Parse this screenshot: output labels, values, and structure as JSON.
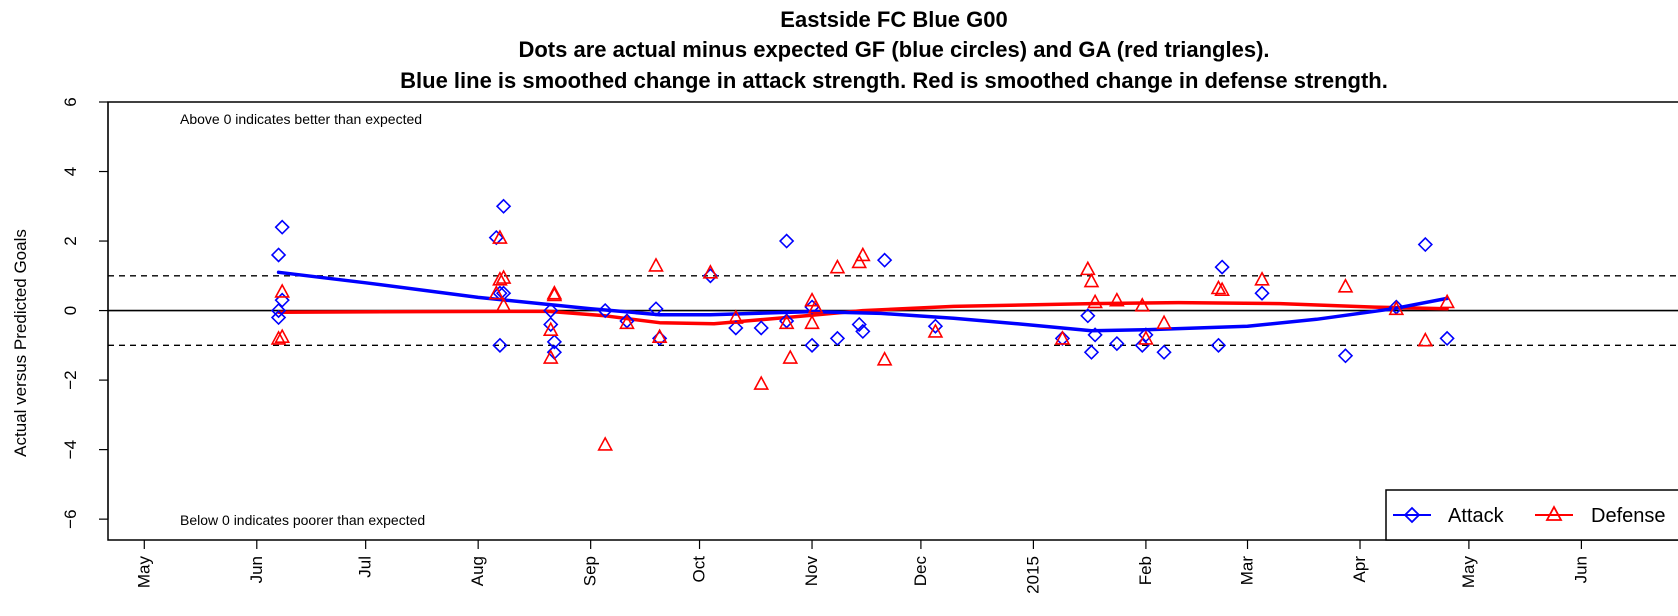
{
  "chart_data": {
    "type": "scatter",
    "title_lines": [
      "Eastside FC Blue G00",
      "Dots are actual minus expected GF (blue circles) and GA (red triangles).",
      "Blue line is smoothed change in attack strength. Red is smoothed change in defense strength."
    ],
    "ylabel": "Actual versus Predicted Goals",
    "ylim": [
      -6.6,
      6.0
    ],
    "yticks": [
      -6,
      -4,
      -2,
      0,
      2,
      4,
      6
    ],
    "xlim": [
      "2014-04-21",
      "2015-06-29"
    ],
    "xticks": [
      {
        "label": "May",
        "date": "2014-05-01"
      },
      {
        "label": "Jun",
        "date": "2014-06-01"
      },
      {
        "label": "Jul",
        "date": "2014-07-01"
      },
      {
        "label": "Aug",
        "date": "2014-08-01"
      },
      {
        "label": "Sep",
        "date": "2014-09-01"
      },
      {
        "label": "Oct",
        "date": "2014-10-01"
      },
      {
        "label": "Nov",
        "date": "2014-11-01"
      },
      {
        "label": "Dec",
        "date": "2014-12-01"
      },
      {
        "label": "2015",
        "date": "2015-01-01"
      },
      {
        "label": "Feb",
        "date": "2015-02-01"
      },
      {
        "label": "Mar",
        "date": "2015-03-01"
      },
      {
        "label": "Apr",
        "date": "2015-04-01"
      },
      {
        "label": "May",
        "date": "2015-05-01"
      },
      {
        "label": "Jun",
        "date": "2015-06-01"
      }
    ],
    "reference_lines": {
      "solid": [
        0
      ],
      "dashed": [
        1,
        -1
      ]
    },
    "annotations": {
      "top": "Above 0 indicates better than expected",
      "bottom": "Below 0 indicates poorer than expected"
    },
    "legend": {
      "position": "bottom-right",
      "attack_label": "Attack",
      "defense_label": "Defense"
    },
    "colors": {
      "attack": "#0000ff",
      "defense": "#ff0000",
      "axis": "#000000"
    },
    "attack_points": [
      {
        "x": "2014-06-07",
        "y": 1.6
      },
      {
        "x": "2014-06-07",
        "y": -0.2
      },
      {
        "x": "2014-06-07",
        "y": 0.0
      },
      {
        "x": "2014-06-08",
        "y": 2.4
      },
      {
        "x": "2014-06-08",
        "y": 0.3
      },
      {
        "x": "2014-08-06",
        "y": 2.1
      },
      {
        "x": "2014-08-07",
        "y": 0.5
      },
      {
        "x": "2014-08-08",
        "y": 3.0
      },
      {
        "x": "2014-08-08",
        "y": 0.5
      },
      {
        "x": "2014-08-07",
        "y": -1.0
      },
      {
        "x": "2014-08-21",
        "y": 0.0
      },
      {
        "x": "2014-08-21",
        "y": -0.4
      },
      {
        "x": "2014-08-22",
        "y": -0.9
      },
      {
        "x": "2014-08-22",
        "y": -1.2
      },
      {
        "x": "2014-09-05",
        "y": 0.0
      },
      {
        "x": "2014-09-11",
        "y": -0.3
      },
      {
        "x": "2014-09-19",
        "y": 0.05
      },
      {
        "x": "2014-09-20",
        "y": -0.8
      },
      {
        "x": "2014-10-04",
        "y": 1.0
      },
      {
        "x": "2014-10-11",
        "y": -0.5
      },
      {
        "x": "2014-10-18",
        "y": -0.5
      },
      {
        "x": "2014-10-25",
        "y": 2.0
      },
      {
        "x": "2014-10-25",
        "y": -0.3
      },
      {
        "x": "2014-11-01",
        "y": -1.0
      },
      {
        "x": "2014-11-01",
        "y": 0.1
      },
      {
        "x": "2014-11-08",
        "y": -0.8
      },
      {
        "x": "2014-11-14",
        "y": -0.4
      },
      {
        "x": "2014-11-15",
        "y": -0.6
      },
      {
        "x": "2014-11-21",
        "y": 1.45
      },
      {
        "x": "2014-12-05",
        "y": -0.45
      },
      {
        "x": "2015-01-09",
        "y": -0.8
      },
      {
        "x": "2015-01-16",
        "y": -0.15
      },
      {
        "x": "2015-01-17",
        "y": -1.2
      },
      {
        "x": "2015-01-18",
        "y": -0.7
      },
      {
        "x": "2015-01-24",
        "y": -0.95
      },
      {
        "x": "2015-01-31",
        "y": -1.0
      },
      {
        "x": "2015-02-01",
        "y": -0.7
      },
      {
        "x": "2015-02-06",
        "y": -1.2
      },
      {
        "x": "2015-02-21",
        "y": -1.0
      },
      {
        "x": "2015-02-22",
        "y": 1.25
      },
      {
        "x": "2015-03-05",
        "y": 0.5
      },
      {
        "x": "2015-03-28",
        "y": -1.3
      },
      {
        "x": "2015-04-11",
        "y": 0.1
      },
      {
        "x": "2015-04-19",
        "y": 1.9
      },
      {
        "x": "2015-04-25",
        "y": -0.8
      }
    ],
    "defense_points": [
      {
        "x": "2014-06-07",
        "y": -0.8
      },
      {
        "x": "2014-06-08",
        "y": -0.75
      },
      {
        "x": "2014-06-08",
        "y": 0.55
      },
      {
        "x": "2014-08-07",
        "y": 0.9
      },
      {
        "x": "2014-08-07",
        "y": 2.1
      },
      {
        "x": "2014-08-08",
        "y": 0.95
      },
      {
        "x": "2014-08-08",
        "y": 0.15
      },
      {
        "x": "2014-08-06",
        "y": 0.5
      },
      {
        "x": "2014-08-21",
        "y": -1.35
      },
      {
        "x": "2014-08-21",
        "y": -0.55
      },
      {
        "x": "2014-08-22",
        "y": 0.45
      },
      {
        "x": "2014-08-22",
        "y": 0.5
      },
      {
        "x": "2014-09-05",
        "y": -3.85
      },
      {
        "x": "2014-09-11",
        "y": -0.35
      },
      {
        "x": "2014-09-19",
        "y": 1.3
      },
      {
        "x": "2014-09-20",
        "y": -0.75
      },
      {
        "x": "2014-10-04",
        "y": 1.1
      },
      {
        "x": "2014-10-11",
        "y": -0.2
      },
      {
        "x": "2014-10-18",
        "y": -2.1
      },
      {
        "x": "2014-10-25",
        "y": -0.35
      },
      {
        "x": "2014-10-26",
        "y": -1.35
      },
      {
        "x": "2014-11-01",
        "y": -0.35
      },
      {
        "x": "2014-11-01",
        "y": 0.3
      },
      {
        "x": "2014-11-02",
        "y": 0.1
      },
      {
        "x": "2014-11-08",
        "y": 1.25
      },
      {
        "x": "2014-11-14",
        "y": 1.4
      },
      {
        "x": "2014-11-15",
        "y": 1.6
      },
      {
        "x": "2014-11-21",
        "y": -1.4
      },
      {
        "x": "2014-12-05",
        "y": -0.6
      },
      {
        "x": "2015-01-09",
        "y": -0.8
      },
      {
        "x": "2015-01-16",
        "y": 1.2
      },
      {
        "x": "2015-01-17",
        "y": 0.85
      },
      {
        "x": "2015-01-18",
        "y": 0.25
      },
      {
        "x": "2015-01-24",
        "y": 0.3
      },
      {
        "x": "2015-01-31",
        "y": 0.15
      },
      {
        "x": "2015-02-01",
        "y": -0.8
      },
      {
        "x": "2015-02-06",
        "y": -0.35
      },
      {
        "x": "2015-02-21",
        "y": 0.65
      },
      {
        "x": "2015-02-22",
        "y": 0.6
      },
      {
        "x": "2015-03-05",
        "y": 0.9
      },
      {
        "x": "2015-03-28",
        "y": 0.7
      },
      {
        "x": "2015-04-11",
        "y": 0.05
      },
      {
        "x": "2015-04-19",
        "y": -0.85
      },
      {
        "x": "2015-04-25",
        "y": 0.25
      }
    ],
    "attack_smooth": [
      {
        "x": "2014-06-07",
        "y": 1.1
      },
      {
        "x": "2014-07-01",
        "y": 0.8
      },
      {
        "x": "2014-08-01",
        "y": 0.38
      },
      {
        "x": "2014-09-01",
        "y": 0.05
      },
      {
        "x": "2014-09-20",
        "y": -0.12
      },
      {
        "x": "2014-10-04",
        "y": -0.12
      },
      {
        "x": "2014-11-01",
        "y": -0.03
      },
      {
        "x": "2014-11-20",
        "y": -0.08
      },
      {
        "x": "2014-12-10",
        "y": -0.22
      },
      {
        "x": "2015-01-01",
        "y": -0.42
      },
      {
        "x": "2015-01-17",
        "y": -0.58
      },
      {
        "x": "2015-02-01",
        "y": -0.55
      },
      {
        "x": "2015-03-01",
        "y": -0.45
      },
      {
        "x": "2015-03-20",
        "y": -0.25
      },
      {
        "x": "2015-04-10",
        "y": 0.05
      },
      {
        "x": "2015-04-25",
        "y": 0.35
      }
    ],
    "defense_smooth": [
      {
        "x": "2014-06-07",
        "y": -0.05
      },
      {
        "x": "2014-07-15",
        "y": -0.03
      },
      {
        "x": "2014-08-20",
        "y": -0.02
      },
      {
        "x": "2014-09-05",
        "y": -0.15
      },
      {
        "x": "2014-09-20",
        "y": -0.35
      },
      {
        "x": "2014-10-05",
        "y": -0.38
      },
      {
        "x": "2014-10-25",
        "y": -0.2
      },
      {
        "x": "2014-11-15",
        "y": 0.0
      },
      {
        "x": "2014-12-10",
        "y": 0.12
      },
      {
        "x": "2015-01-17",
        "y": 0.2
      },
      {
        "x": "2015-02-10",
        "y": 0.23
      },
      {
        "x": "2015-03-10",
        "y": 0.2
      },
      {
        "x": "2015-04-05",
        "y": 0.1
      },
      {
        "x": "2015-04-25",
        "y": 0.05
      }
    ]
  }
}
